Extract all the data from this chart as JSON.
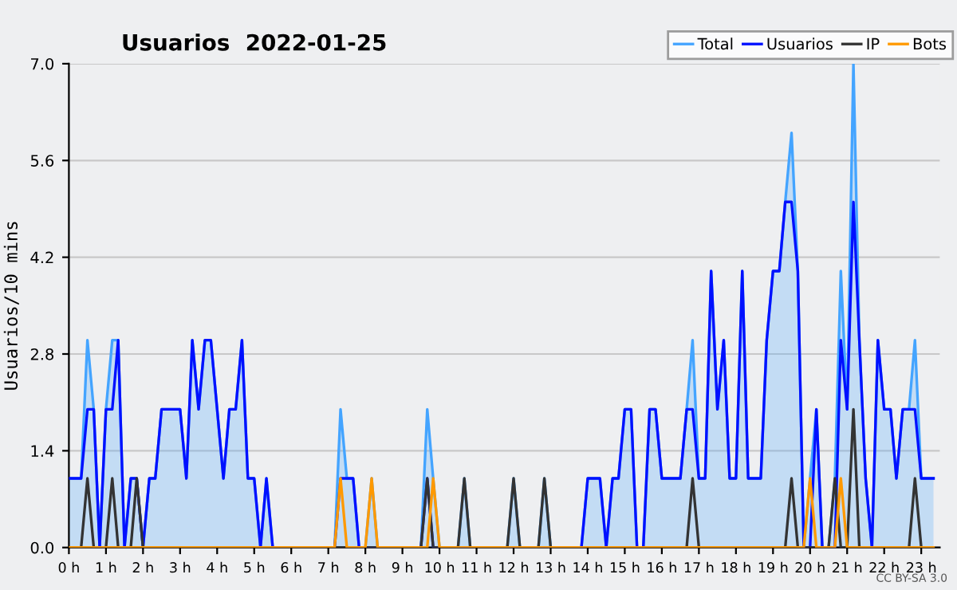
{
  "chart_data": {
    "type": "line",
    "title": "Usuarios  2022-01-25",
    "ylabel": "Usuarios/10 mins",
    "x": [
      0,
      0.17,
      0.33,
      0.5,
      0.67,
      0.83,
      1,
      1.17,
      1.33,
      1.5,
      1.67,
      1.83,
      2,
      2.17,
      2.33,
      2.5,
      2.67,
      2.83,
      3,
      3.17,
      3.33,
      3.5,
      3.67,
      3.83,
      4,
      4.17,
      4.33,
      4.5,
      4.67,
      4.83,
      5,
      5.17,
      5.33,
      5.5,
      5.67,
      5.83,
      6,
      6.17,
      6.33,
      6.5,
      6.67,
      6.83,
      7,
      7.17,
      7.33,
      7.5,
      7.67,
      7.83,
      8,
      8.17,
      8.33,
      8.5,
      8.67,
      8.83,
      9,
      9.17,
      9.33,
      9.5,
      9.67,
      9.83,
      10,
      10.17,
      10.33,
      10.5,
      10.67,
      10.83,
      11,
      11.17,
      11.33,
      11.5,
      11.67,
      11.83,
      12,
      12.17,
      12.33,
      12.5,
      12.67,
      12.83,
      13,
      13.17,
      13.33,
      13.5,
      13.67,
      13.83,
      14,
      14.17,
      14.33,
      14.5,
      14.67,
      14.83,
      15,
      15.17,
      15.33,
      15.5,
      15.67,
      15.83,
      16,
      16.17,
      16.33,
      16.5,
      16.67,
      16.83,
      17,
      17.17,
      17.33,
      17.5,
      17.67,
      17.83,
      18,
      18.17,
      18.33,
      18.5,
      18.67,
      18.83,
      19,
      19.17,
      19.33,
      19.5,
      19.67,
      19.83,
      20,
      20.17,
      20.33,
      20.5,
      20.67,
      20.83,
      21,
      21.17,
      21.33,
      21.5,
      21.67,
      21.83,
      22,
      22.17,
      22.33,
      22.5,
      22.67,
      22.83,
      23,
      23.17,
      23.33
    ],
    "series": [
      {
        "name": "Total",
        "type": "area",
        "color": "#44a4ff",
        "values": [
          1,
          1,
          1,
          3,
          2,
          0,
          2,
          3,
          3,
          0,
          1,
          1,
          0,
          1,
          1,
          2,
          2,
          2,
          2,
          1,
          3,
          2,
          3,
          3,
          2,
          1,
          2,
          2,
          3,
          1,
          1,
          0,
          1,
          0,
          0,
          0,
          0,
          0,
          0,
          0,
          0,
          0,
          0,
          0,
          2,
          1,
          1,
          0,
          0,
          1,
          0,
          0,
          0,
          0,
          0,
          0,
          0,
          0,
          2,
          1,
          0,
          0,
          0,
          0,
          1,
          0,
          0,
          0,
          0,
          0,
          0,
          0,
          1,
          0,
          0,
          0,
          0,
          1,
          0,
          0,
          0,
          0,
          0,
          0,
          1,
          1,
          1,
          0,
          1,
          1,
          2,
          2,
          0,
          0,
          2,
          2,
          1,
          1,
          1,
          1,
          2,
          3,
          1,
          1,
          4,
          2,
          3,
          1,
          1,
          4,
          1,
          1,
          1,
          3,
          4,
          4,
          5,
          6,
          4,
          0,
          1,
          2,
          0,
          0,
          1,
          4,
          2,
          7,
          3,
          1,
          0,
          3,
          2,
          2,
          1,
          2,
          2,
          3,
          1,
          1,
          1
        ]
      },
      {
        "name": "Usuarios",
        "color": "#0010ff",
        "values": [
          1,
          1,
          1,
          2,
          2,
          0,
          2,
          2,
          3,
          0,
          1,
          1,
          0,
          1,
          1,
          2,
          2,
          2,
          2,
          1,
          3,
          2,
          3,
          3,
          2,
          1,
          2,
          2,
          3,
          1,
          1,
          0,
          1,
          0,
          0,
          0,
          0,
          0,
          0,
          0,
          0,
          0,
          0,
          0,
          1,
          1,
          1,
          0,
          0,
          0,
          0,
          0,
          0,
          0,
          0,
          0,
          0,
          0,
          1,
          0,
          0,
          0,
          0,
          0,
          0,
          0,
          0,
          0,
          0,
          0,
          0,
          0,
          0,
          0,
          0,
          0,
          0,
          0,
          0,
          0,
          0,
          0,
          0,
          0,
          1,
          1,
          1,
          0,
          1,
          1,
          2,
          2,
          0,
          0,
          2,
          2,
          1,
          1,
          1,
          1,
          2,
          2,
          1,
          1,
          4,
          2,
          3,
          1,
          1,
          4,
          1,
          1,
          1,
          3,
          4,
          4,
          5,
          5,
          4,
          0,
          0,
          2,
          0,
          0,
          0,
          3,
          2,
          5,
          3,
          1,
          0,
          3,
          2,
          2,
          1,
          2,
          2,
          2,
          1,
          1,
          1
        ]
      },
      {
        "name": "IP",
        "color": "#333333",
        "values": [
          0,
          0,
          0,
          1,
          0,
          0,
          0,
          1,
          0,
          0,
          0,
          1,
          0,
          0,
          0,
          0,
          0,
          0,
          0,
          0,
          0,
          0,
          0,
          0,
          0,
          0,
          0,
          0,
          0,
          0,
          0,
          0,
          0,
          0,
          0,
          0,
          0,
          0,
          0,
          0,
          0,
          0,
          0,
          0,
          0,
          0,
          0,
          0,
          0,
          0,
          0,
          0,
          0,
          0,
          0,
          0,
          0,
          0,
          1,
          0,
          0,
          0,
          0,
          0,
          1,
          0,
          0,
          0,
          0,
          0,
          0,
          0,
          1,
          0,
          0,
          0,
          0,
          1,
          0,
          0,
          0,
          0,
          0,
          0,
          0,
          0,
          0,
          0,
          0,
          0,
          0,
          0,
          0,
          0,
          0,
          0,
          0,
          0,
          0,
          0,
          0,
          1,
          0,
          0,
          0,
          0,
          0,
          0,
          0,
          0,
          0,
          0,
          0,
          0,
          0,
          0,
          0,
          1,
          0,
          0,
          0,
          0,
          0,
          0,
          1,
          0,
          0,
          2,
          0,
          0,
          0,
          0,
          0,
          0,
          0,
          0,
          0,
          1,
          0,
          0,
          0
        ]
      },
      {
        "name": "Bots",
        "color": "#ff9900",
        "values": [
          0,
          0,
          0,
          0,
          0,
          0,
          0,
          0,
          0,
          0,
          0,
          0,
          0,
          0,
          0,
          0,
          0,
          0,
          0,
          0,
          0,
          0,
          0,
          0,
          0,
          0,
          0,
          0,
          0,
          0,
          0,
          0,
          0,
          0,
          0,
          0,
          0,
          0,
          0,
          0,
          0,
          0,
          0,
          0,
          1,
          0,
          0,
          0,
          0,
          1,
          0,
          0,
          0,
          0,
          0,
          0,
          0,
          0,
          0,
          1,
          0,
          0,
          0,
          0,
          0,
          0,
          0,
          0,
          0,
          0,
          0,
          0,
          0,
          0,
          0,
          0,
          0,
          0,
          0,
          0,
          0,
          0,
          0,
          0,
          0,
          0,
          0,
          0,
          0,
          0,
          0,
          0,
          0,
          0,
          0,
          0,
          0,
          0,
          0,
          0,
          0,
          0,
          0,
          0,
          0,
          0,
          0,
          0,
          0,
          0,
          0,
          0,
          0,
          0,
          0,
          0,
          0,
          0,
          0,
          0,
          1,
          0,
          0,
          0,
          0,
          1,
          0,
          0,
          0,
          0,
          0,
          0,
          0,
          0,
          0,
          0,
          0,
          0,
          0,
          0,
          0
        ]
      }
    ],
    "xlim": [
      0,
      23.5
    ],
    "xticks": [
      {
        "value": 0,
        "label": "0 h"
      },
      {
        "value": 1,
        "label": "1 h"
      },
      {
        "value": 2,
        "label": "2 h"
      },
      {
        "value": 3,
        "label": "3 h"
      },
      {
        "value": 4,
        "label": "4 h"
      },
      {
        "value": 5,
        "label": "5 h"
      },
      {
        "value": 6,
        "label": "6 h"
      },
      {
        "value": 7,
        "label": "7 h"
      },
      {
        "value": 8,
        "label": "8 h"
      },
      {
        "value": 9,
        "label": "9 h"
      },
      {
        "value": 10,
        "label": "10 h"
      },
      {
        "value": 11,
        "label": "11 h"
      },
      {
        "value": 12,
        "label": "12 h"
      },
      {
        "value": 13,
        "label": "13 h"
      },
      {
        "value": 14,
        "label": "14 h"
      },
      {
        "value": 15,
        "label": "15 h"
      },
      {
        "value": 16,
        "label": "16 h"
      },
      {
        "value": 17,
        "label": "17 h"
      },
      {
        "value": 18,
        "label": "18 h"
      },
      {
        "value": 19,
        "label": "19 h"
      },
      {
        "value": 20,
        "label": "20 h"
      },
      {
        "value": 21,
        "label": "21 h"
      },
      {
        "value": 22,
        "label": "22 h"
      },
      {
        "value": 23,
        "label": "23 h"
      }
    ],
    "ylim": [
      0,
      7
    ],
    "yticks": [
      {
        "value": 0,
        "label": "0.0"
      },
      {
        "value": 1.4,
        "label": "1.4"
      },
      {
        "value": 2.8,
        "label": "2.8"
      },
      {
        "value": 4.2,
        "label": "4.2"
      },
      {
        "value": 5.6,
        "label": "5.6"
      },
      {
        "value": 7,
        "label": "7.0"
      }
    ],
    "grid": "y",
    "legend": "top right",
    "marker": "none",
    "line_style": "solid",
    "annotations": [
      "CC BY-SA 3.0"
    ]
  }
}
